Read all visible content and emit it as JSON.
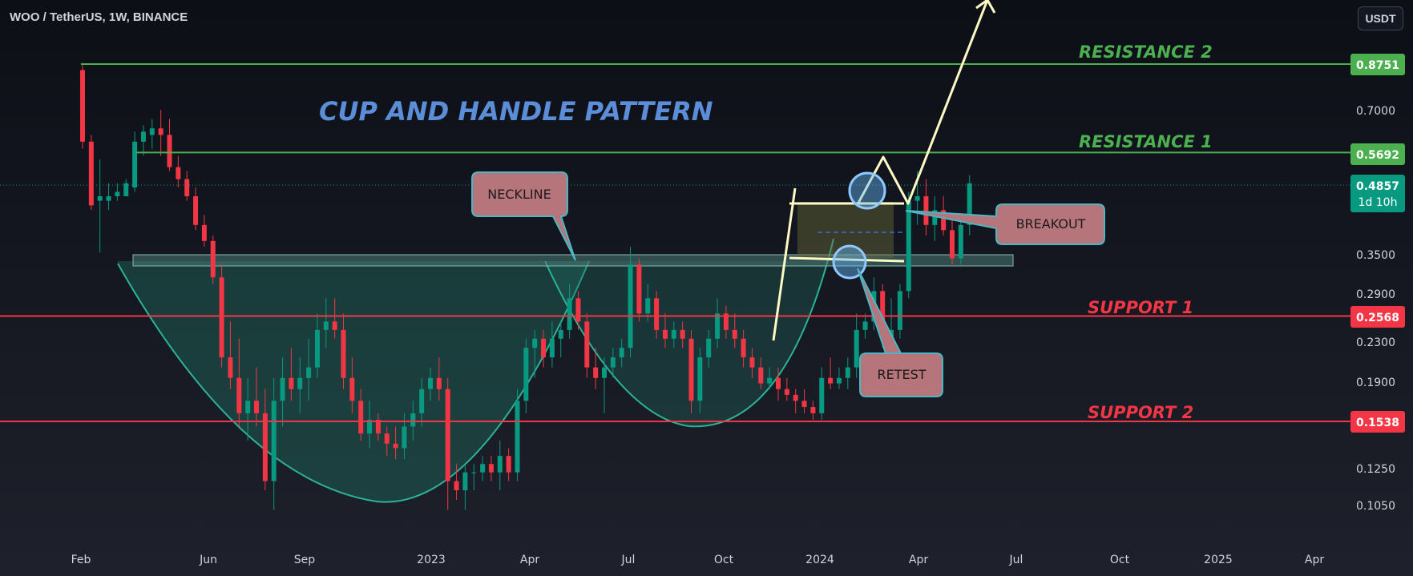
{
  "header": {
    "title": "WOO / TetherUS, 1W, BINANCE",
    "currency": "USDT"
  },
  "annotations": {
    "pattern_title": "CUP AND HANDLE PATTERN",
    "neckline": "NECKLINE",
    "breakout": "BREAKOUT",
    "retest": "RETEST"
  },
  "levels": [
    {
      "name": "RESISTANCE 2",
      "price": 0.8751,
      "price_label": "0.8751",
      "color": "#4caf50"
    },
    {
      "name": "RESISTANCE 1",
      "price": 0.5692,
      "price_label": "0.5692",
      "color": "#4caf50"
    },
    {
      "name": "SUPPORT  1",
      "price": 0.2568,
      "price_label": "0.2568",
      "color": "#f23645"
    },
    {
      "name": "SUPPORT  2",
      "price": 0.1538,
      "price_label": "0.1538",
      "color": "#f23645"
    }
  ],
  "current_price": {
    "label": "0.4857",
    "countdown": "1d 10h",
    "price": 0.4857,
    "color": "#089981"
  },
  "colors": {
    "up": "#089981",
    "down": "#f23645",
    "cup_fill": "#1f6b5e",
    "neckline_zone": "#4a7a74",
    "arrow": "#fff9c4",
    "callout_fill": "#b5757a",
    "callout_border": "#4db6c4",
    "circle": "#64b5f6"
  },
  "chart_data": {
    "type": "candlestick",
    "symbol": "WOO / TetherUS",
    "interval": "1W",
    "exchange": "BINANCE",
    "y_scale": "log",
    "y_ticks": [
      "0.8751",
      "0.7000",
      "0.5692",
      "0.4857",
      "0.3500",
      "0.2900",
      "0.2568",
      "0.2300",
      "0.1900",
      "0.1538",
      "0.1250",
      "0.1050"
    ],
    "x_ticks": [
      "Feb",
      "Jun",
      "Sep",
      "2023",
      "Apr",
      "Jul",
      "Oct",
      "2024",
      "Apr",
      "Jul",
      "Oct",
      "2025",
      "Apr"
    ],
    "series": [
      {
        "name": "WOO / TetherUS",
        "ohlc": [
          [
            0.85,
            0.88,
            0.58,
            0.6
          ],
          [
            0.6,
            0.62,
            0.43,
            0.44
          ],
          [
            0.45,
            0.55,
            0.35,
            0.46
          ],
          [
            0.45,
            0.49,
            0.43,
            0.46
          ],
          [
            0.46,
            0.49,
            0.45,
            0.47
          ],
          [
            0.46,
            0.5,
            0.46,
            0.49
          ],
          [
            0.48,
            0.63,
            0.47,
            0.6
          ],
          [
            0.6,
            0.65,
            0.56,
            0.63
          ],
          [
            0.62,
            0.67,
            0.58,
            0.64
          ],
          [
            0.64,
            0.7,
            0.56,
            0.62
          ],
          [
            0.62,
            0.67,
            0.52,
            0.53
          ],
          [
            0.53,
            0.56,
            0.48,
            0.5
          ],
          [
            0.5,
            0.52,
            0.45,
            0.46
          ],
          [
            0.46,
            0.48,
            0.39,
            0.4
          ],
          [
            0.4,
            0.42,
            0.36,
            0.37
          ],
          [
            0.37,
            0.38,
            0.3,
            0.31
          ],
          [
            0.31,
            0.33,
            0.2,
            0.21
          ],
          [
            0.21,
            0.25,
            0.18,
            0.19
          ],
          [
            0.19,
            0.23,
            0.15,
            0.16
          ],
          [
            0.16,
            0.19,
            0.14,
            0.17
          ],
          [
            0.17,
            0.2,
            0.15,
            0.16
          ],
          [
            0.16,
            0.18,
            0.11,
            0.115
          ],
          [
            0.115,
            0.19,
            0.1,
            0.17
          ],
          [
            0.17,
            0.21,
            0.15,
            0.19
          ],
          [
            0.19,
            0.22,
            0.17,
            0.18
          ],
          [
            0.18,
            0.21,
            0.16,
            0.19
          ],
          [
            0.19,
            0.23,
            0.17,
            0.2
          ],
          [
            0.2,
            0.26,
            0.19,
            0.24
          ],
          [
            0.24,
            0.28,
            0.22,
            0.25
          ],
          [
            0.25,
            0.28,
            0.23,
            0.24
          ],
          [
            0.24,
            0.26,
            0.18,
            0.19
          ],
          [
            0.19,
            0.21,
            0.16,
            0.17
          ],
          [
            0.17,
            0.18,
            0.14,
            0.145
          ],
          [
            0.145,
            0.17,
            0.135,
            0.155
          ],
          [
            0.155,
            0.16,
            0.14,
            0.145
          ],
          [
            0.145,
            0.15,
            0.13,
            0.138
          ],
          [
            0.138,
            0.15,
            0.128,
            0.135
          ],
          [
            0.135,
            0.16,
            0.128,
            0.15
          ],
          [
            0.15,
            0.17,
            0.14,
            0.16
          ],
          [
            0.16,
            0.19,
            0.15,
            0.18
          ],
          [
            0.18,
            0.2,
            0.17,
            0.19
          ],
          [
            0.19,
            0.21,
            0.17,
            0.18
          ],
          [
            0.18,
            0.19,
            0.1,
            0.115
          ],
          [
            0.115,
            0.125,
            0.105,
            0.11
          ],
          [
            0.11,
            0.125,
            0.1,
            0.12
          ],
          [
            0.12,
            0.125,
            0.11,
            0.12
          ],
          [
            0.12,
            0.13,
            0.115,
            0.125
          ],
          [
            0.125,
            0.13,
            0.115,
            0.12
          ],
          [
            0.12,
            0.14,
            0.11,
            0.13
          ],
          [
            0.13,
            0.135,
            0.115,
            0.12
          ],
          [
            0.12,
            0.18,
            0.115,
            0.17
          ],
          [
            0.17,
            0.23,
            0.16,
            0.22
          ],
          [
            0.22,
            0.24,
            0.19,
            0.23
          ],
          [
            0.23,
            0.24,
            0.2,
            0.21
          ],
          [
            0.21,
            0.25,
            0.2,
            0.23
          ],
          [
            0.23,
            0.25,
            0.21,
            0.24
          ],
          [
            0.24,
            0.3,
            0.23,
            0.28
          ],
          [
            0.28,
            0.29,
            0.24,
            0.25
          ],
          [
            0.25,
            0.26,
            0.19,
            0.2
          ],
          [
            0.2,
            0.22,
            0.18,
            0.19
          ],
          [
            0.19,
            0.21,
            0.16,
            0.2
          ],
          [
            0.2,
            0.22,
            0.19,
            0.21
          ],
          [
            0.21,
            0.23,
            0.2,
            0.22
          ],
          [
            0.22,
            0.36,
            0.21,
            0.33
          ],
          [
            0.33,
            0.34,
            0.25,
            0.26
          ],
          [
            0.26,
            0.3,
            0.25,
            0.28
          ],
          [
            0.28,
            0.29,
            0.23,
            0.24
          ],
          [
            0.24,
            0.26,
            0.22,
            0.23
          ],
          [
            0.23,
            0.25,
            0.22,
            0.24
          ],
          [
            0.24,
            0.25,
            0.22,
            0.23
          ],
          [
            0.23,
            0.24,
            0.16,
            0.17
          ],
          [
            0.17,
            0.22,
            0.16,
            0.21
          ],
          [
            0.21,
            0.24,
            0.2,
            0.23
          ],
          [
            0.23,
            0.28,
            0.22,
            0.26
          ],
          [
            0.26,
            0.27,
            0.23,
            0.24
          ],
          [
            0.24,
            0.26,
            0.22,
            0.23
          ],
          [
            0.23,
            0.24,
            0.2,
            0.21
          ],
          [
            0.21,
            0.22,
            0.19,
            0.2
          ],
          [
            0.2,
            0.21,
            0.18,
            0.185
          ],
          [
            0.185,
            0.2,
            0.18,
            0.19
          ],
          [
            0.19,
            0.2,
            0.17,
            0.18
          ],
          [
            0.18,
            0.19,
            0.17,
            0.175
          ],
          [
            0.175,
            0.18,
            0.16,
            0.17
          ],
          [
            0.17,
            0.18,
            0.16,
            0.165
          ],
          [
            0.165,
            0.17,
            0.155,
            0.16
          ],
          [
            0.16,
            0.2,
            0.155,
            0.19
          ],
          [
            0.19,
            0.21,
            0.18,
            0.185
          ],
          [
            0.185,
            0.2,
            0.18,
            0.19
          ],
          [
            0.19,
            0.21,
            0.18,
            0.2
          ],
          [
            0.2,
            0.26,
            0.19,
            0.24
          ],
          [
            0.24,
            0.26,
            0.23,
            0.25
          ],
          [
            0.25,
            0.31,
            0.24,
            0.29
          ],
          [
            0.29,
            0.3,
            0.22,
            0.23
          ],
          [
            0.23,
            0.28,
            0.21,
            0.24
          ],
          [
            0.24,
            0.3,
            0.23,
            0.29
          ],
          [
            0.29,
            0.47,
            0.28,
            0.45
          ],
          [
            0.45,
            0.52,
            0.4,
            0.46
          ],
          [
            0.46,
            0.5,
            0.38,
            0.4
          ],
          [
            0.4,
            0.46,
            0.37,
            0.43
          ],
          [
            0.43,
            0.46,
            0.38,
            0.39
          ],
          [
            0.39,
            0.42,
            0.33,
            0.34
          ],
          [
            0.34,
            0.42,
            0.33,
            0.4
          ],
          [
            0.4,
            0.51,
            0.38,
            0.49
          ]
        ]
      }
    ],
    "annotations": [
      "CUP AND HANDLE PATTERN",
      "NECKLINE",
      "BREAKOUT",
      "RETEST"
    ]
  }
}
